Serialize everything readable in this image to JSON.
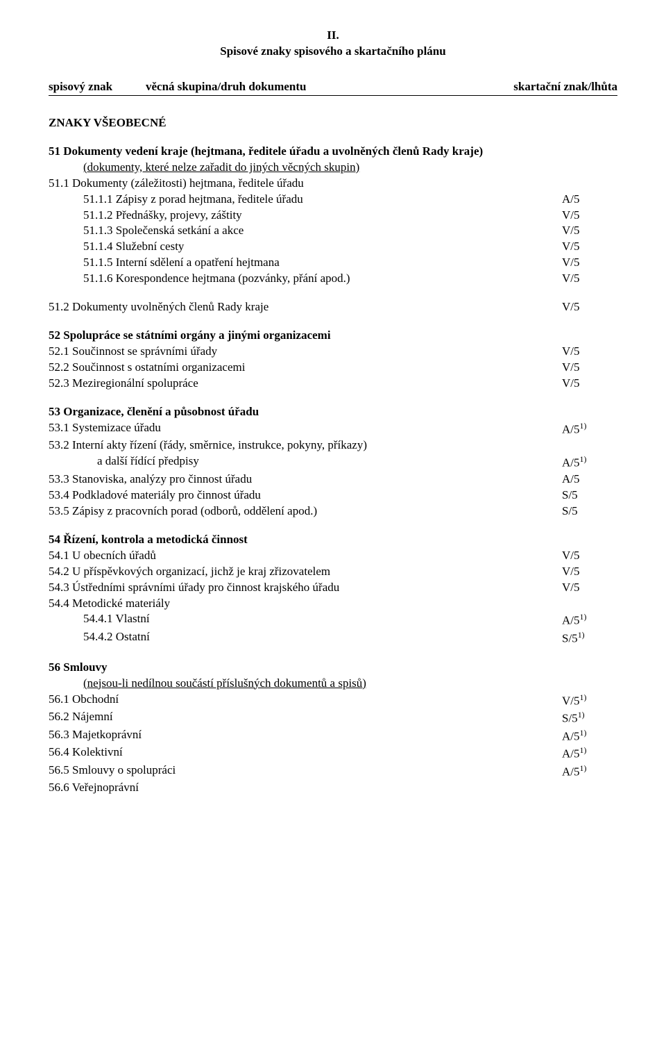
{
  "heading_roman": "II.",
  "heading_main": "Spisové znaky spisového a skartačního plánu",
  "header_cols": {
    "c1": "spisový znak",
    "c2": "věcná skupina/druh dokumentu",
    "c3": "skartační znak/lhůta"
  },
  "znaky": "ZNAKY VŠEOBECNÉ",
  "s51_title": "51 Dokumenty vedení kraje (hejtmana, ředitele úřadu a uvolněných členů Rady kraje)",
  "s51_note_u": "(dokumenty, které nelze zařadit do jiných věcných skupin)",
  "r51_1": "51.1 Dokumenty (záležitosti) hejtmana, ředitele úřadu",
  "r51_1_1": {
    "l": "51.1.1 Zápisy z porad hejtmana, ředitele úřadu",
    "r": "A/5"
  },
  "r51_1_2": {
    "l": "51.1.2 Přednášky, projevy, záštity",
    "r": "V/5"
  },
  "r51_1_3": {
    "l": "51.1.3 Společenská setkání a akce",
    "r": "V/5"
  },
  "r51_1_4": {
    "l": "51.1.4 Služební cesty",
    "r": "V/5"
  },
  "r51_1_5": {
    "l": "51.1.5 Interní sdělení a opatření hejtmana",
    "r": "V/5"
  },
  "r51_1_6": {
    "l": "51.1.6 Korespondence hejtmana (pozvánky, přání apod.)",
    "r": "V/5"
  },
  "r51_2": {
    "l": "51.2 Dokumenty uvolněných členů Rady kraje",
    "r": "V/5"
  },
  "s52_title": "52 Spolupráce se státními orgány a jinými organizacemi",
  "r52_1": {
    "l": "52.1 Součinnost se správními úřady",
    "r": "V/5"
  },
  "r52_2": {
    "l": "52.2 Součinnost s ostatními organizacemi",
    "r": "V/5"
  },
  "r52_3": {
    "l": "52.3 Meziregionální spolupráce",
    "r": "V/5"
  },
  "s53_title": "53 Organizace, členění a působnost úřadu",
  "r53_1": {
    "l": "53.1 Systemizace úřadu",
    "r": "A/5",
    "sup": "1)"
  },
  "r53_2a": "53.2 Interní akty řízení (řády, směrnice, instrukce, pokyny, příkazy)",
  "r53_2b": {
    "l": "a další řídící předpisy",
    "r": "A/5",
    "sup": "1)"
  },
  "r53_3": {
    "l": "53.3 Stanoviska, analýzy pro činnost úřadu",
    "r": "A/5"
  },
  "r53_4": {
    "l": "53.4 Podkladové materiály pro činnost úřadu",
    "r": "S/5"
  },
  "r53_5": {
    "l": "53.5 Zápisy z pracovních porad (odborů, oddělení apod.)",
    "r": "S/5"
  },
  "s54_title": "54 Řízení, kontrola a metodická činnost",
  "r54_1": {
    "l": "54.1 U obecních úřadů",
    "r": "V/5"
  },
  "r54_2": {
    "l": "54.2 U příspěvkových organizací, jichž je kraj zřizovatelem",
    "r": "V/5"
  },
  "r54_3": {
    "l": "54.3 Ústředními správními úřady pro činnost krajského úřadu",
    "r": "V/5"
  },
  "r54_4": "54.4 Metodické materiály",
  "r54_4_1": {
    "l": "54.4.1 Vlastní",
    "r": "A/5",
    "sup": "1)"
  },
  "r54_4_2": {
    "l": "54.4.2 Ostatní",
    "r": "S/5",
    "sup": "1)"
  },
  "s56_title": "56 Smlouvy",
  "s56_note_u": "(nejsou-li nedílnou součástí příslušných dokumentů a spisů)",
  "r56_1": {
    "l": "56.1 Obchodní",
    "r": "V/5",
    "sup": "1)"
  },
  "r56_2": {
    "l": "56.2 Nájemní",
    "r": "S/5",
    "sup": "1)"
  },
  "r56_3": {
    "l": "56.3 Majetkoprávní",
    "r": "A/5",
    "sup": "1)"
  },
  "r56_4": {
    "l": "56.4 Kolektivní",
    "r": "A/5",
    "sup": "1)"
  },
  "r56_5": {
    "l": "56.5 Smlouvy o spolupráci",
    "r": "A/5",
    "sup": "1)"
  },
  "r56_6": "56.6 Veřejnoprávní"
}
